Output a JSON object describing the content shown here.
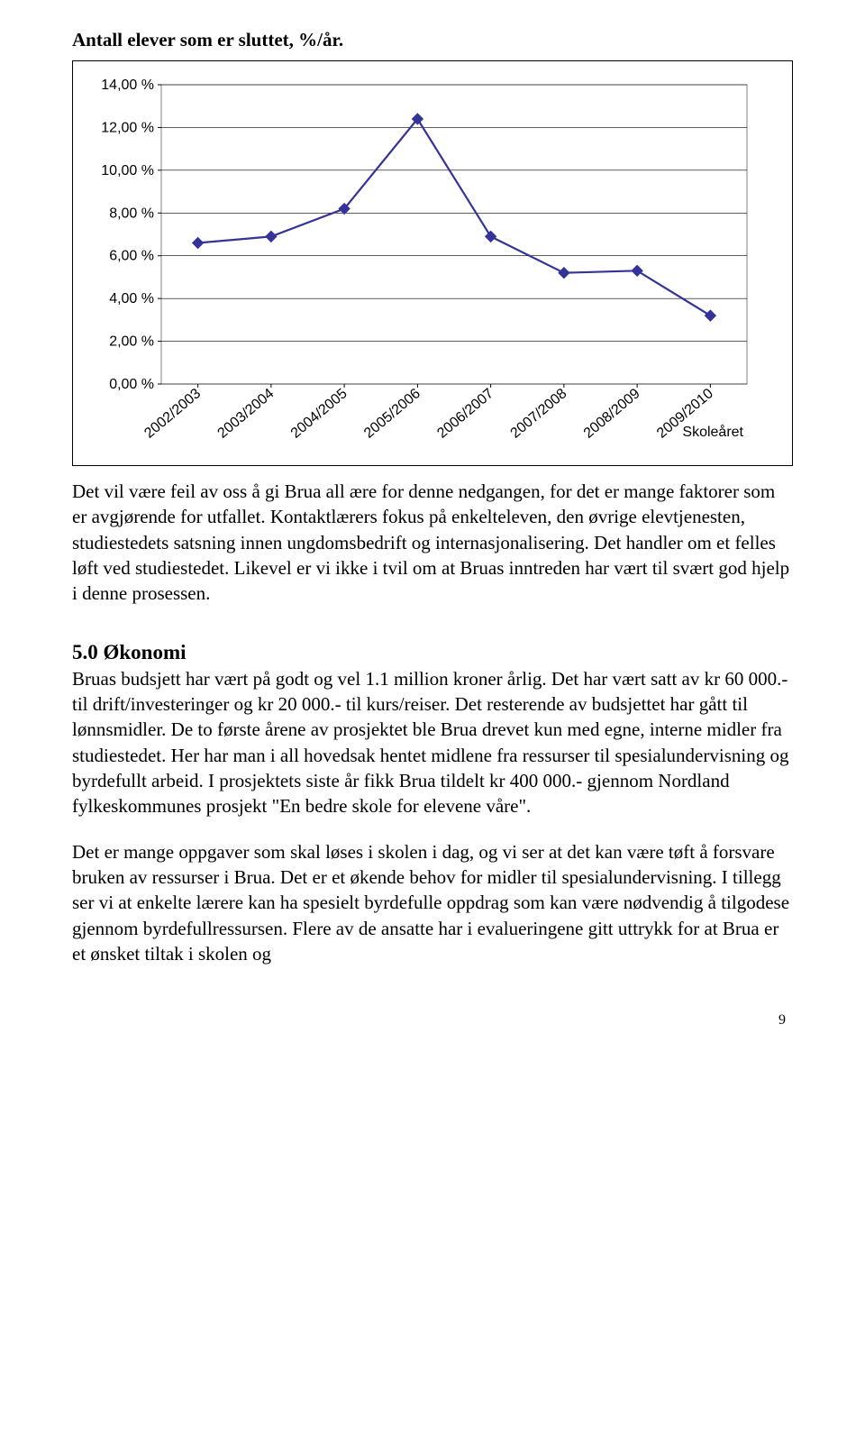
{
  "title": "Antall elever som er sluttet, %/år.",
  "chart": {
    "type": "line",
    "categories": [
      "2002/2003",
      "2003/2004",
      "2004/2005",
      "2005/2006",
      "2006/2007",
      "2007/2008",
      "2008/2009",
      "2009/2010"
    ],
    "values": [
      6.6,
      6.9,
      8.2,
      12.4,
      6.9,
      5.2,
      5.3,
      3.2
    ],
    "ylim": [
      0,
      14
    ],
    "ytick_step": 2,
    "ytick_labels": [
      "0,00 %",
      "2,00 %",
      "4,00 %",
      "6,00 %",
      "8,00 %",
      "10,00 %",
      "12,00 %",
      "14,00 %"
    ],
    "x_axis_label": "Skoleåret",
    "line_color": "#333399",
    "marker_color": "#333399",
    "grid_color": "#000000",
    "background_color": "#ffffff",
    "plot_border_color": "#808080",
    "marker_size": 6,
    "line_width": 2.2
  },
  "para1": "Det vil være feil av oss å gi Brua all ære for denne nedgangen, for det er mange faktorer som er avgjørende for utfallet. Kontaktlærers fokus på enkelteleven, den øvrige elevtjenesten, studiestedets satsning innen ungdomsbedrift og internasjonalisering. Det handler om et felles løft ved studiestedet. Likevel er vi ikke i tvil om at Bruas inntreden har vært til svært god hjelp i denne prosessen.",
  "section_heading": "5.0 Økonomi",
  "para2": "Bruas budsjett har vært på godt og vel 1.1 million kroner årlig. Det har vært satt av kr 60 000.- til drift/investeringer og kr 20 000.- til kurs/reiser. Det resterende av budsjettet har gått til lønnsmidler. De to første årene av prosjektet ble Brua drevet kun med egne, interne midler fra studiestedet. Her har man i all hovedsak hentet midlene fra ressurser til spesialundervisning og byrdefullt arbeid. I prosjektets siste år fikk Brua tildelt kr 400 000.- gjennom Nordland fylkeskommunes prosjekt \"En bedre skole for elevene våre\".",
  "para3": "Det er mange oppgaver som skal løses i skolen i dag, og vi ser at det kan være tøft å forsvare bruken av ressurser i Brua. Det er et økende behov for midler til spesialundervisning. I tillegg ser vi at enkelte lærere kan ha spesielt byrdefulle oppdrag som kan være nødvendig å tilgodese gjennom byrdefullressursen. Flere av de ansatte har i evalueringene gitt uttrykk for at Brua er et ønsket tiltak i skolen og",
  "page_number": "9"
}
